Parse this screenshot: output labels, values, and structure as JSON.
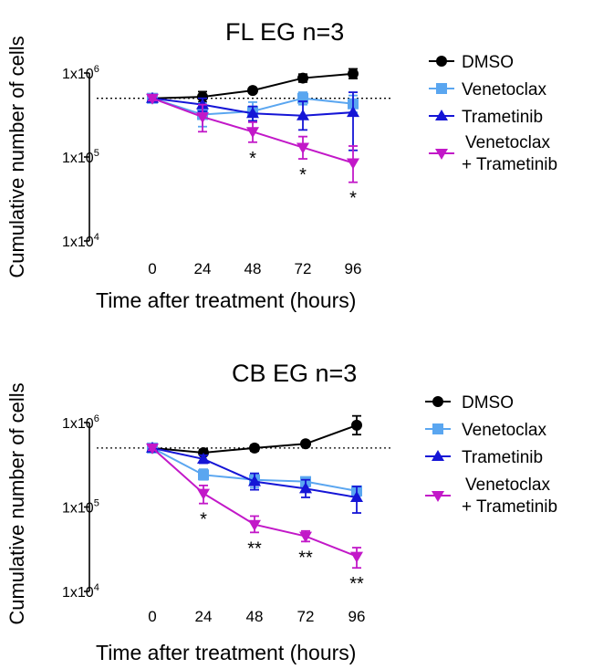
{
  "colors": {
    "DMSO": "#000000",
    "Venetoclax": "#5aa6f0",
    "Trametinib": "#1515d6",
    "Venetoclax + Trametinib": "#c218c8"
  },
  "chart_data": [
    {
      "type": "line",
      "title": "FL EG n=3",
      "xlabel": "Time after treatment (hours)",
      "ylabel": "Cumulative number of cells",
      "yscale": "log",
      "ylim": [
        10000,
        1000000
      ],
      "yticks": [
        {
          "value": 10000,
          "mant": "1x10",
          "exp": "4"
        },
        {
          "value": 100000,
          "mant": "1x10",
          "exp": "5"
        },
        {
          "value": 1000000,
          "mant": "1x10",
          "exp": "6"
        }
      ],
      "x": [
        0,
        24,
        48,
        72,
        96
      ],
      "baseline": 500000,
      "series": [
        {
          "name": "DMSO",
          "marker": "circle",
          "values": [
            500000,
            520000,
            620000,
            870000,
            980000
          ],
          "err": [
            [
              460000,
              560000
            ],
            [
              450000,
              600000
            ],
            [
              580000,
              660000
            ],
            [
              780000,
              970000
            ],
            [
              860000,
              1120000
            ]
          ]
        },
        {
          "name": "Venetoclax",
          "marker": "square",
          "values": [
            500000,
            320000,
            350000,
            500000,
            430000
          ],
          "err": [
            [
              470000,
              530000
            ],
            [
              230000,
              440000
            ],
            [
              260000,
              450000
            ],
            [
              420000,
              590000
            ],
            [
              340000,
              540000
            ]
          ]
        },
        {
          "name": "Trametinib",
          "marker": "triangle-up",
          "values": [
            500000,
            420000,
            330000,
            310000,
            340000
          ],
          "err": [
            [
              470000,
              530000
            ],
            [
              350000,
              500000
            ],
            [
              270000,
              400000
            ],
            [
              210000,
              460000
            ],
            [
              120000,
              590000
            ]
          ]
        },
        {
          "name": "Venetoclax + Trametinib",
          "marker": "triangle-down",
          "values": [
            500000,
            300000,
            200000,
            130000,
            85000
          ],
          "err": [
            [
              470000,
              530000
            ],
            [
              200000,
              420000
            ],
            [
              150000,
              260000
            ],
            [
              95000,
              175000
            ],
            [
              50000,
              135000
            ]
          ]
        }
      ],
      "annotations": [
        {
          "x": 48,
          "text": "*"
        },
        {
          "x": 72,
          "text": "*"
        },
        {
          "x": 96,
          "text": "*"
        }
      ],
      "legend": "right"
    },
    {
      "type": "line",
      "title": "CB EG n=3",
      "xlabel": "Time after treatment (hours)",
      "ylabel": "Cumulative number of cells",
      "yscale": "log",
      "ylim": [
        10000,
        1000000
      ],
      "yticks": [
        {
          "value": 10000,
          "mant": "1x10",
          "exp": "4"
        },
        {
          "value": 100000,
          "mant": "1x10",
          "exp": "5"
        },
        {
          "value": 1000000,
          "mant": "1x10",
          "exp": "6"
        }
      ],
      "x": [
        0,
        24,
        48,
        72,
        96
      ],
      "baseline": 500000,
      "series": [
        {
          "name": "DMSO",
          "marker": "circle",
          "values": [
            500000,
            440000,
            500000,
            560000,
            930000
          ],
          "err": [
            [
              460000,
              540000
            ],
            [
              410000,
              480000
            ],
            [
              460000,
              540000
            ],
            [
              520000,
              600000
            ],
            [
              720000,
              1200000
            ]
          ]
        },
        {
          "name": "Venetoclax",
          "marker": "square",
          "values": [
            500000,
            240000,
            210000,
            200000,
            155000
          ],
          "err": [
            [
              470000,
              530000
            ],
            [
              210000,
              280000
            ],
            [
              170000,
              250000
            ],
            [
              175000,
              225000
            ],
            [
              135000,
              175000
            ]
          ]
        },
        {
          "name": "Trametinib",
          "marker": "triangle-up",
          "values": [
            500000,
            370000,
            200000,
            165000,
            130000
          ],
          "err": [
            [
              470000,
              530000
            ],
            [
              330000,
              410000
            ],
            [
              160000,
              250000
            ],
            [
              130000,
              210000
            ],
            [
              85000,
              175000
            ]
          ]
        },
        {
          "name": "Venetoclax + Trametinib",
          "marker": "triangle-down",
          "values": [
            500000,
            145000,
            62000,
            45000,
            26000
          ],
          "err": [
            [
              470000,
              530000
            ],
            [
              110000,
              180000
            ],
            [
              50000,
              78000
            ],
            [
              39000,
              52000
            ],
            [
              19000,
              33000
            ]
          ]
        }
      ],
      "annotations": [
        {
          "x": 24,
          "text": "*"
        },
        {
          "x": 48,
          "text": "**"
        },
        {
          "x": 72,
          "text": "**"
        },
        {
          "x": 96,
          "text": "**"
        }
      ],
      "legend": "right"
    }
  ]
}
